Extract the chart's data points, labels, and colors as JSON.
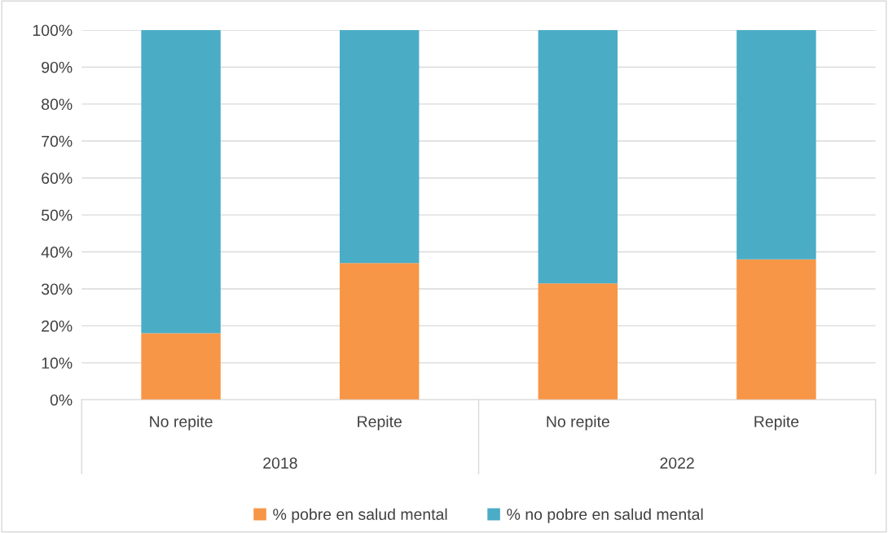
{
  "chart_data": {
    "type": "bar",
    "stacked": true,
    "categories": [
      "No repite",
      "Repite",
      "No repite",
      "Repite"
    ],
    "annotations": [
      "2018",
      "2022"
    ],
    "series": [
      {
        "name": "% pobre en salud mental",
        "color": "#f79646",
        "values": [
          18,
          37,
          31.5,
          38
        ]
      },
      {
        "name": "% no pobre en salud mental",
        "color": "#4bacc6",
        "values": [
          82,
          63,
          68.5,
          62
        ]
      }
    ],
    "ylim": [
      0,
      100
    ],
    "yticks": [
      {
        "value": 0,
        "label": "0%"
      },
      {
        "value": 10,
        "label": "10%"
      },
      {
        "value": 20,
        "label": "20%"
      },
      {
        "value": 30,
        "label": "30%"
      },
      {
        "value": 40,
        "label": "40%"
      },
      {
        "value": 50,
        "label": "50%"
      },
      {
        "value": 60,
        "label": "60%"
      },
      {
        "value": 70,
        "label": "70%"
      },
      {
        "value": 80,
        "label": "80%"
      },
      {
        "value": 90,
        "label": "90%"
      },
      {
        "value": 100,
        "label": "100%"
      }
    ],
    "grid": "y",
    "legend": "bottom"
  }
}
